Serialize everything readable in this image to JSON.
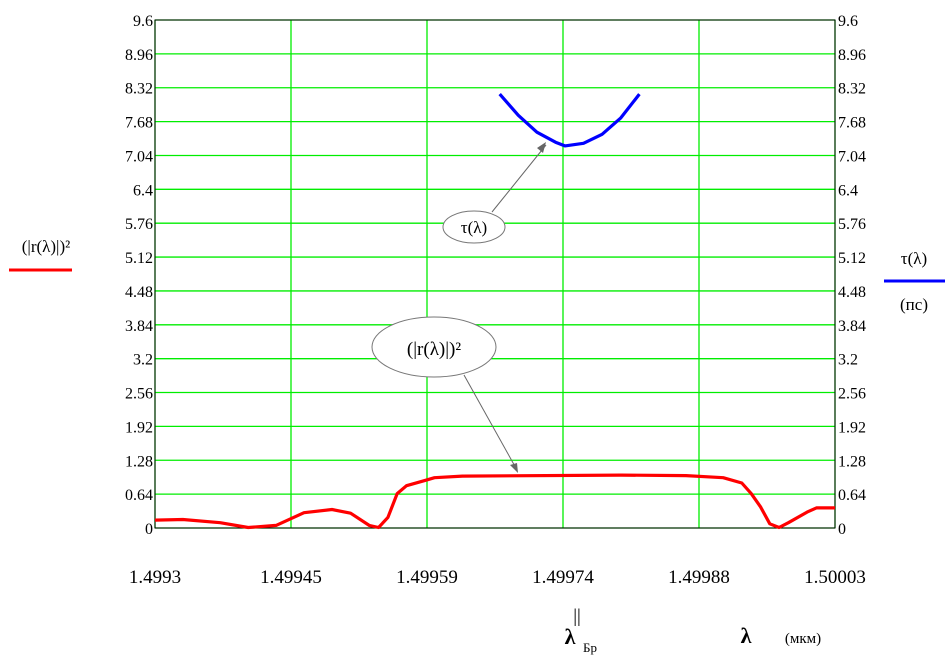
{
  "chart_data": {
    "type": "line",
    "x_ticks": [
      "1.4993",
      "1.49945",
      "1.49959",
      "1.49974",
      "1.49988",
      "1.50003"
    ],
    "y_ticks": [
      "0",
      "0.64",
      "1.28",
      "1.92",
      "2.56",
      "3.2",
      "3.84",
      "4.48",
      "5.12",
      "5.76",
      "6.4",
      "7.04",
      "7.68",
      "8.32",
      "8.96",
      "9.6"
    ],
    "xlim": [
      1.4993,
      1.50003
    ],
    "ylim": [
      0,
      9.6
    ],
    "grid": true,
    "left_ylabel": "(|r(λ)|)²",
    "right_ylabel_top": "τ(λ)",
    "right_ylabel_bottom": "(пс)",
    "xlabel_symbol": "λ",
    "xlabel_unit": "(мкм)",
    "bragg_marker": "||",
    "bragg_label": "λ",
    "bragg_subscript": "Бр",
    "annotations": [
      {
        "text": "τ(λ)",
        "points_to": [
          1.49974,
          7.2
        ]
      },
      {
        "text": "(|r(λ)|)²",
        "points_to": [
          1.49969,
          1.0
        ]
      }
    ],
    "series": [
      {
        "name": "(|r(λ)|)²",
        "color": "#ff0000",
        "points": [
          [
            1.4993,
            0.15
          ],
          [
            1.49933,
            0.16
          ],
          [
            1.49937,
            0.1
          ],
          [
            1.4994,
            0.01
          ],
          [
            1.49943,
            0.05
          ],
          [
            1.49946,
            0.29
          ],
          [
            1.49949,
            0.35
          ],
          [
            1.49951,
            0.28
          ],
          [
            1.49953,
            0.05
          ],
          [
            1.49954,
            0.01
          ],
          [
            1.49955,
            0.2
          ],
          [
            1.49956,
            0.65
          ],
          [
            1.49957,
            0.8
          ],
          [
            1.49959,
            0.9
          ],
          [
            1.4996,
            0.95
          ],
          [
            1.49963,
            0.98
          ],
          [
            1.4998,
            1.0
          ],
          [
            1.49987,
            0.99
          ],
          [
            1.49991,
            0.95
          ],
          [
            1.49993,
            0.85
          ],
          [
            1.49994,
            0.65
          ],
          [
            1.49995,
            0.4
          ],
          [
            1.49996,
            0.08
          ],
          [
            1.49997,
            0.01
          ],
          [
            1.49998,
            0.1
          ],
          [
            1.5,
            0.3
          ],
          [
            1.50001,
            0.38
          ],
          [
            1.50003,
            0.38
          ]
        ]
      },
      {
        "name": "τ(λ)",
        "color": "#0000ff",
        "points": [
          [
            1.49967,
            8.2
          ],
          [
            1.49969,
            7.8
          ],
          [
            1.49971,
            7.48
          ],
          [
            1.49973,
            7.29
          ],
          [
            1.49974,
            7.22
          ],
          [
            1.49976,
            7.27
          ],
          [
            1.49978,
            7.44
          ],
          [
            1.4998,
            7.75
          ],
          [
            1.49982,
            8.2
          ]
        ]
      }
    ]
  }
}
